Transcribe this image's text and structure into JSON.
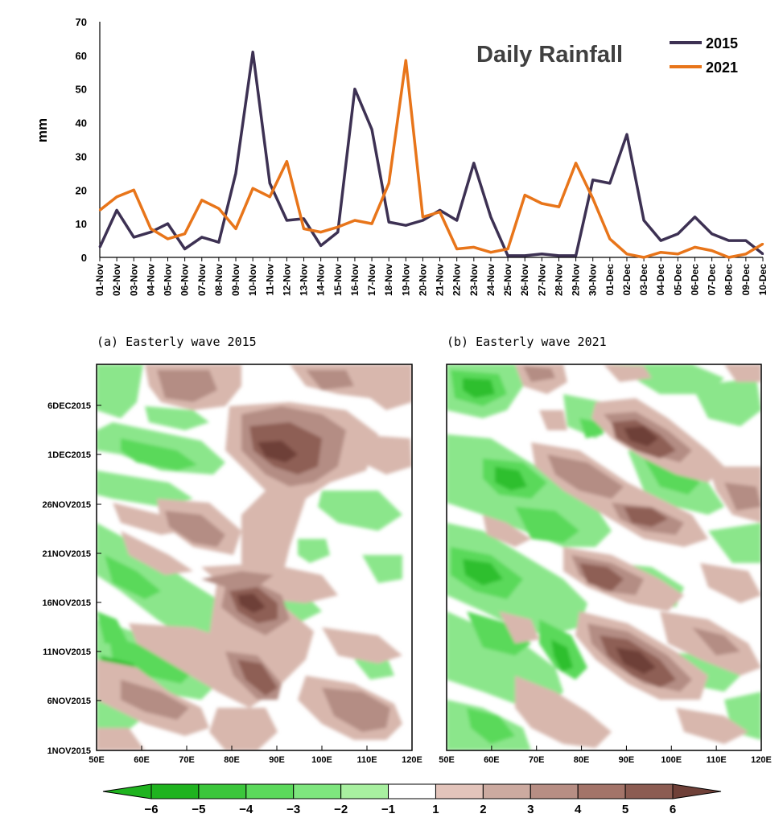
{
  "chart_data": [
    {
      "type": "line",
      "title": "Daily Rainfall",
      "ylabel": "mm",
      "ylim": [
        0,
        70
      ],
      "yticks": [
        0,
        10,
        20,
        30,
        40,
        50,
        60,
        70
      ],
      "legend_position": "top-right",
      "categories": [
        "01-Nov",
        "02-Nov",
        "03-Nov",
        "04-Nov",
        "05-Nov",
        "06-Nov",
        "07-Nov",
        "08-Nov",
        "09-Nov",
        "10-Nov",
        "11-Nov",
        "12-Nov",
        "13-Nov",
        "14-Nov",
        "15-Nov",
        "16-Nov",
        "17-Nov",
        "18-Nov",
        "19-Nov",
        "20-Nov",
        "21-Nov",
        "22-Nov",
        "23-Nov",
        "24-Nov",
        "25-Nov",
        "26-Nov",
        "27-Nov",
        "28-Nov",
        "29-Nov",
        "30-Nov",
        "01-Dec",
        "02-Dec",
        "03-Dec",
        "04-Dec",
        "05-Dec",
        "06-Dec",
        "07-Dec",
        "08-Dec",
        "09-Dec",
        "10-Dec"
      ],
      "series": [
        {
          "name": "2015",
          "color": "#3d3153",
          "values": [
            3,
            14,
            6,
            7.5,
            10,
            2.5,
            6,
            4.5,
            25,
            61,
            22,
            11,
            11.5,
            3.5,
            7.5,
            50,
            38,
            10.5,
            9.5,
            11,
            14,
            11,
            28,
            12,
            0.5,
            0.5,
            1,
            0.5,
            0.5,
            23,
            22,
            36.5,
            11,
            5,
            7,
            12,
            7,
            5,
            5,
            1
          ]
        },
        {
          "name": "2021",
          "color": "#e8751a",
          "values": [
            14,
            18,
            20,
            8.5,
            5.5,
            7,
            17,
            14.5,
            8.5,
            20.5,
            18,
            28.5,
            8.5,
            7.5,
            9,
            11,
            10,
            22,
            58.5,
            12,
            13.5,
            2.5,
            3,
            1.5,
            2.5,
            18.5,
            16,
            15,
            28,
            17.5,
            5.5,
            1,
            0,
            1.5,
            1,
            3,
            2,
            0,
            1,
            4
          ]
        }
      ]
    },
    {
      "type": "heatmap",
      "panel_title": "(a) Easterly wave 2015",
      "x_ticks": [
        "50E",
        "60E",
        "70E",
        "80E",
        "90E",
        "100E",
        "110E",
        "120E"
      ],
      "y_ticks": [
        "1NOV2015",
        "6NOV2015",
        "11NOV2015",
        "16NOV2015",
        "21NOV2015",
        "26NOV2015",
        "1DEC2015",
        "6DEC2015"
      ]
    },
    {
      "type": "heatmap",
      "panel_title": "(b) Easterly wave 2021",
      "x_ticks": [
        "50E",
        "60E",
        "70E",
        "80E",
        "90E",
        "100E",
        "110E",
        "120E"
      ]
    }
  ],
  "colorbar": {
    "labels": [
      "−6",
      "−5",
      "−4",
      "−3",
      "−2",
      "−1",
      "1",
      "2",
      "3",
      "4",
      "5",
      "6"
    ],
    "colors": [
      "#1fb31f",
      "#3bc63b",
      "#5bd95b",
      "#7ee67e",
      "#a8f0a0",
      "#ffffff",
      "#e3c4bb",
      "#ccaaa0",
      "#b78e84",
      "#a37469",
      "#8c5c52",
      "#6f4038"
    ]
  }
}
